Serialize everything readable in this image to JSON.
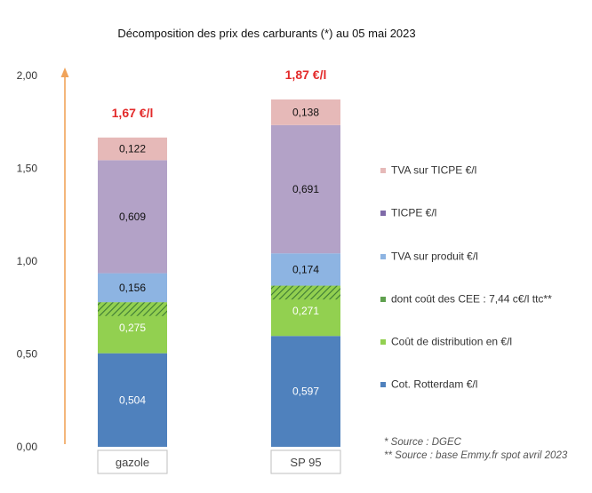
{
  "chart_data": {
    "type": "bar",
    "stacked": true,
    "title": "Décomposition des prix des carburants (*) au 05 mai 2023",
    "categories": [
      "gazole",
      "SP 95"
    ],
    "totals_labels": [
      "1,67 €/l",
      "1,87 €/l"
    ],
    "ylim": [
      0,
      2.0
    ],
    "yticks": [
      "0,00",
      "0,50",
      "1,00",
      "1,50",
      "2,00"
    ],
    "grid": false,
    "legend_position": "right",
    "series": [
      {
        "name": "Cot. Rotterdam €/l",
        "values": [
          0.504,
          0.597
        ],
        "labels": [
          "0,504",
          "0,597"
        ],
        "color": "#4f81bd"
      },
      {
        "name": "Coût de distribution en €/l",
        "values": [
          0.275,
          0.271
        ],
        "labels": [
          "0,275",
          "0,271"
        ],
        "color": "#92d050"
      },
      {
        "name": "dont coût des CEE : 7,44 c€/l ttc**",
        "values": [
          0.0744,
          0.0744
        ],
        "labels": [
          "",
          ""
        ],
        "color": "#5fa04e",
        "hatched": true,
        "part_of": "Coût de distribution en €/l"
      },
      {
        "name": "TVA sur produit €/l",
        "values": [
          0.156,
          0.174
        ],
        "labels": [
          "0,156",
          "0,174"
        ],
        "color": "#8db4e2"
      },
      {
        "name": "TICPE €/l",
        "values": [
          0.609,
          0.691
        ],
        "labels": [
          "0,609",
          "0,691"
        ],
        "color": "#b3a2c7"
      },
      {
        "name": "TVA sur TICPE €/l",
        "values": [
          0.122,
          0.138
        ],
        "labels": [
          "0,122",
          "0,138"
        ],
        "color": "#e6b9b8"
      }
    ],
    "legend_order": [
      "TVA sur TICPE €/l",
      "TICPE €/l",
      "TVA sur produit €/l",
      "dont coût des CEE : 7,44 c€/l ttc**",
      "Coût de distribution en €/l",
      "Cot. Rotterdam €/l"
    ],
    "legend_marker_colors": [
      "#e6b9b8",
      "#7f6aa8",
      "#8db4e2",
      "#5fa04e",
      "#92d050",
      "#4f81bd"
    ],
    "total_label_color": "#e32a2a",
    "arrow_color": "#f0a35a"
  },
  "notes": [
    "* Source : DGEC",
    "** Source : base Emmy.fr spot avril 2023"
  ]
}
